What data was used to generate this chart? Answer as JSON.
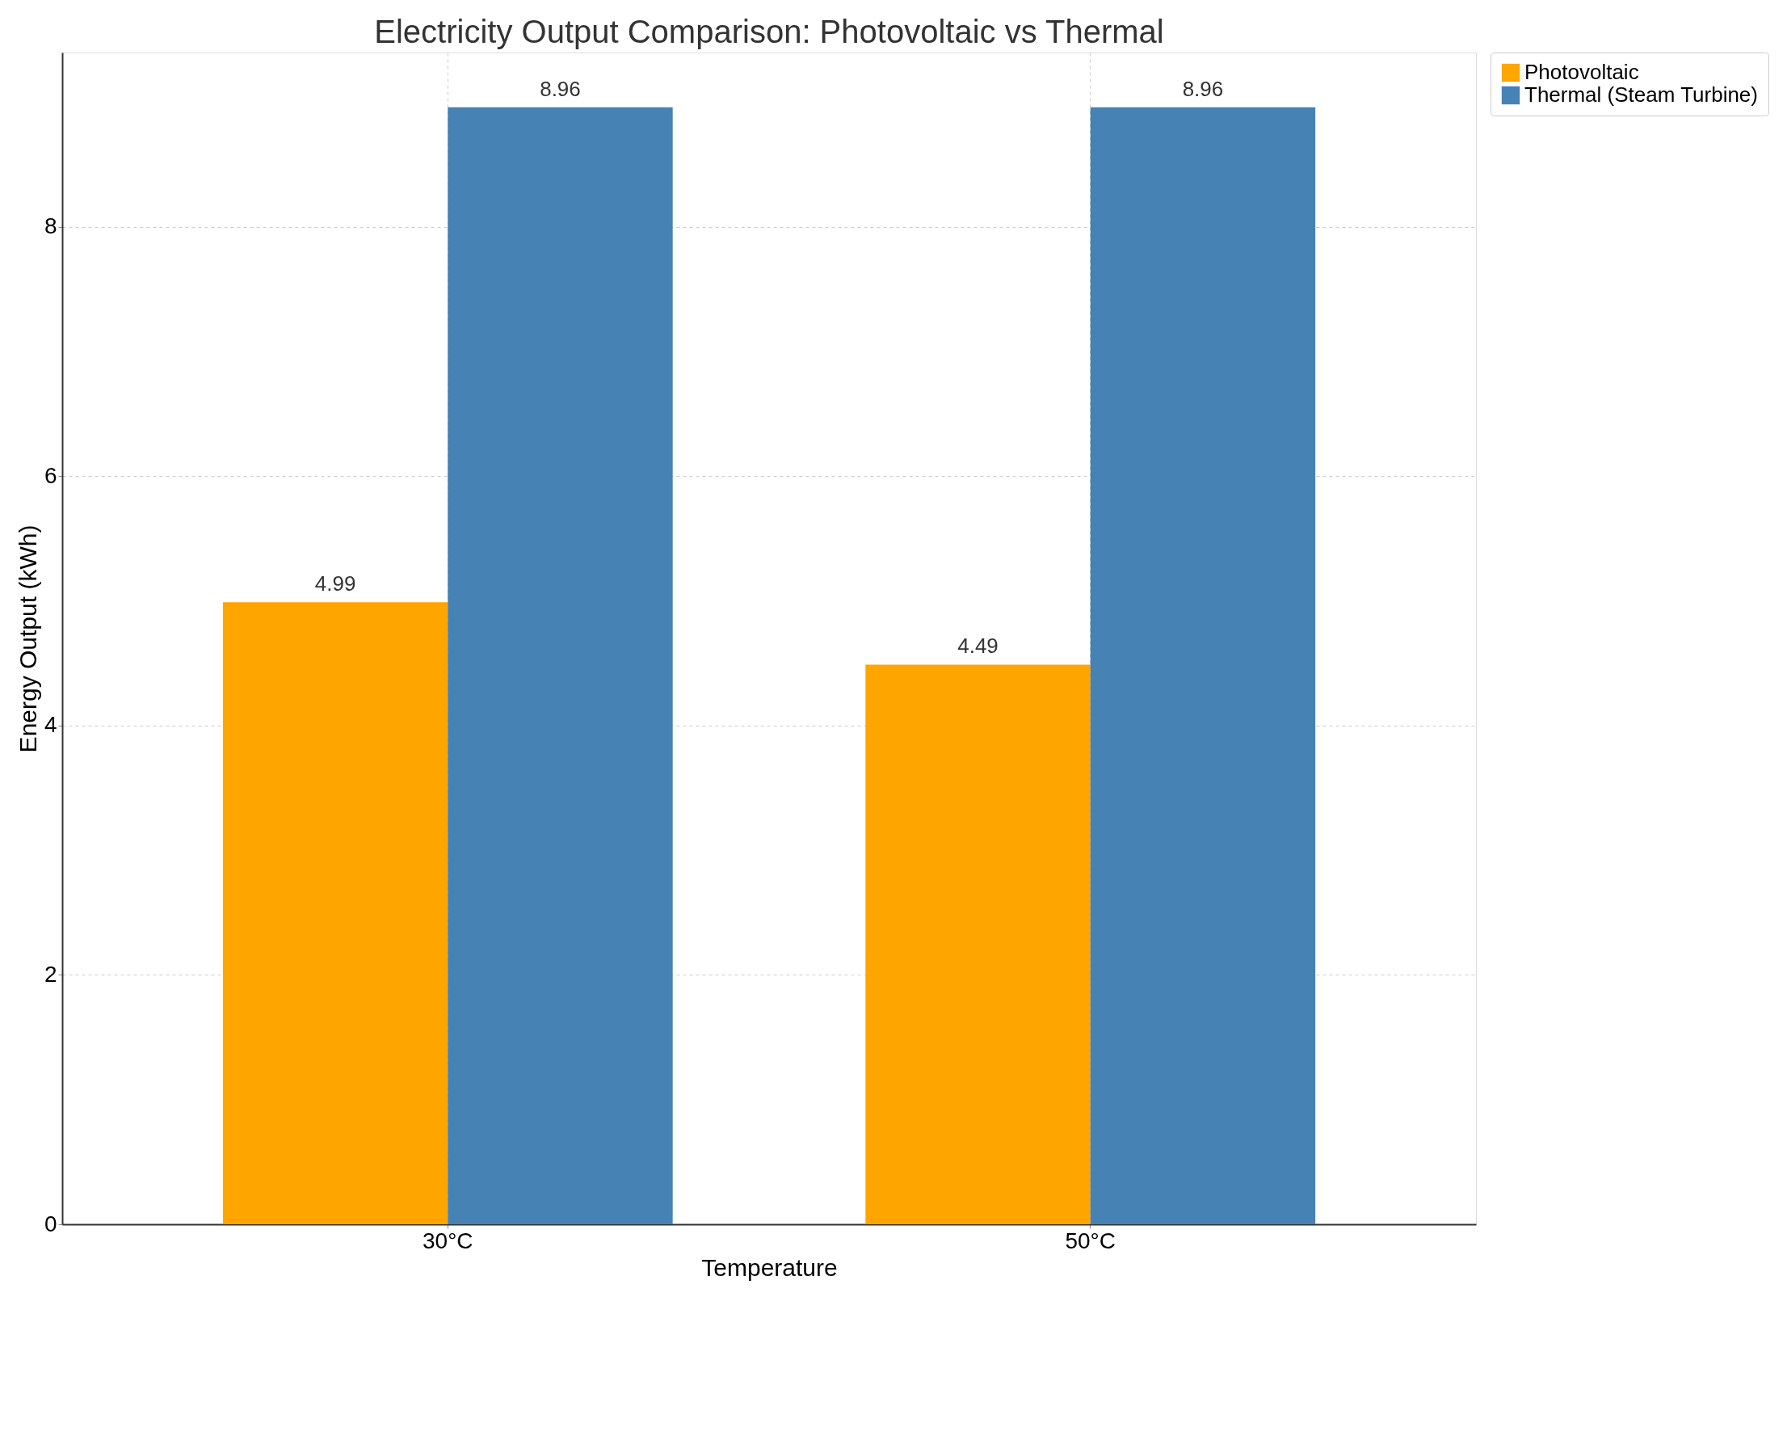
{
  "chart_data": {
    "type": "bar",
    "title": "Electricity Output Comparison: Photovoltaic vs Thermal",
    "xlabel": "Temperature",
    "ylabel": "Energy Output (kWh)",
    "categories": [
      "30°C",
      "50°C"
    ],
    "series": [
      {
        "name": "Photovoltaic",
        "color": "#ffa500",
        "values": [
          4.99,
          4.49
        ]
      },
      {
        "name": "Thermal (Steam Turbine)",
        "color": "#4682b4",
        "values": [
          8.96,
          8.96
        ]
      }
    ],
    "ylim": [
      0,
      9.4
    ],
    "yticks": [
      0,
      2,
      4,
      6,
      8
    ],
    "grid": true,
    "legend": "top right",
    "data_labels": true
  }
}
